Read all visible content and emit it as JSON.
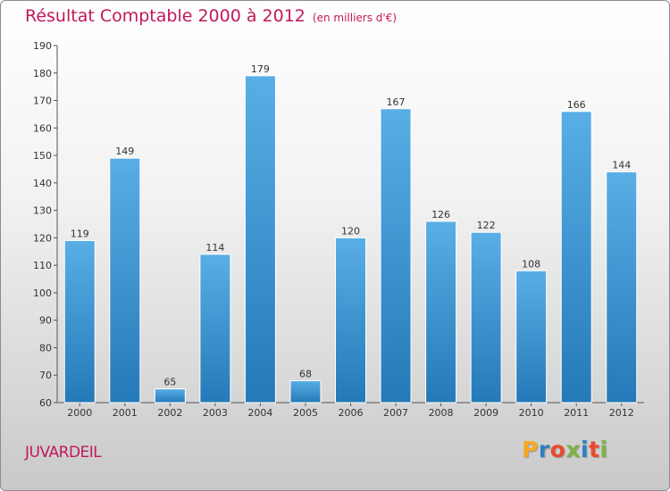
{
  "title": "Résultat Comptable 2000 à 2012",
  "subtitle": "(en milliers d'€)",
  "commune": "JUVARDEIL",
  "logo": {
    "text": "Proxiti",
    "colors": [
      "#f7a823",
      "#2f7fc1",
      "#e94a2e",
      "#7cb342",
      "#2f7fc1",
      "#e94a2e",
      "#7cb342"
    ]
  },
  "colors": {
    "bar_light": "#5aaee6",
    "bar_dark": "#2479b8",
    "title": "#c2185b",
    "axis": "#555555"
  },
  "chart_data": {
    "type": "bar",
    "title": "Résultat Comptable 2000 à 2012",
    "subtitle": "(en milliers d'€)",
    "categories": [
      "2000",
      "2001",
      "2002",
      "2003",
      "2004",
      "2005",
      "2006",
      "2007",
      "2008",
      "2009",
      "2010",
      "2011",
      "2012"
    ],
    "values": [
      119,
      149,
      65,
      114,
      179,
      68,
      120,
      167,
      126,
      122,
      108,
      166,
      144
    ],
    "ylim": [
      60,
      190
    ],
    "yticks": [
      60,
      70,
      80,
      90,
      100,
      110,
      120,
      130,
      140,
      150,
      160,
      170,
      180,
      190
    ],
    "xlabel": "",
    "ylabel": "",
    "grid": false,
    "legend": "none"
  }
}
